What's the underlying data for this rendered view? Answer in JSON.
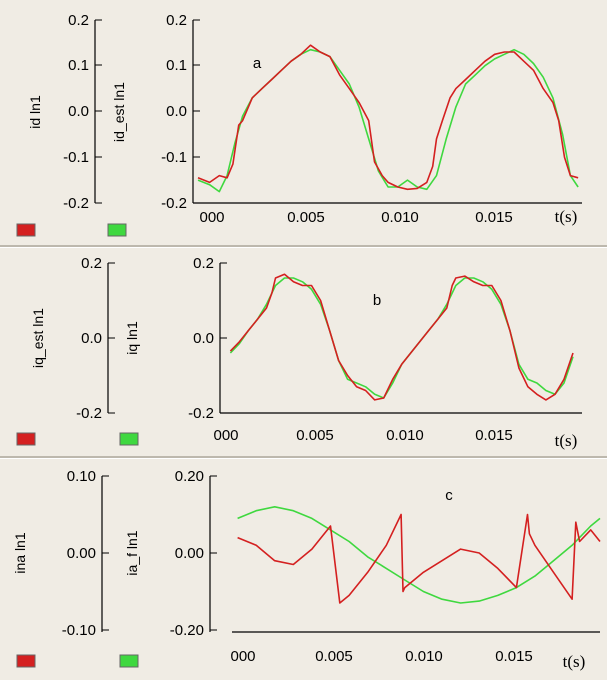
{
  "colors": {
    "background": "#ffffff",
    "panel_bg": "#f0ece4",
    "series_red": "#d42020",
    "series_green": "#3fd83f",
    "axis": "#000000"
  },
  "chart_data": [
    {
      "type": "line",
      "panel_label": "a",
      "outer_axis": {
        "label": "id ln1",
        "ticks": [
          "0.2",
          "0.1",
          "0.0",
          "-0.1",
          "-0.2"
        ]
      },
      "inner_axis": {
        "label": "id_est ln1",
        "ticks": [
          "0.2",
          "0.1",
          "0.0",
          "-0.1",
          "-0.2"
        ]
      },
      "xlabel": "t(s)",
      "xticks": [
        "000",
        "0.005",
        "0.010",
        "0.015"
      ],
      "xlim": [
        -0.0003,
        0.0195
      ],
      "ylim": [
        -0.2,
        0.2
      ],
      "legend_swatches": [
        "red",
        "green"
      ],
      "series": [
        {
          "color": "red",
          "x": [
            -0.0003,
            0.0003,
            0.0008,
            0.0012,
            0.0015,
            0.0018,
            0.002,
            0.0025,
            0.003,
            0.0035,
            0.004,
            0.0045,
            0.005,
            0.0055,
            0.006,
            0.0065,
            0.007,
            0.0075,
            0.008,
            0.0085,
            0.0088,
            0.0092,
            0.0095,
            0.01,
            0.0105,
            0.011,
            0.0115,
            0.0118,
            0.012,
            0.0123,
            0.0127,
            0.013,
            0.0135,
            0.014,
            0.0145,
            0.015,
            0.0155,
            0.016,
            0.0165,
            0.017,
            0.0175,
            0.018,
            0.0183,
            0.0186,
            0.0189,
            0.0193
          ],
          "y": [
            -0.145,
            -0.155,
            -0.14,
            -0.145,
            -0.115,
            -0.03,
            -0.02,
            0.03,
            0.05,
            0.07,
            0.09,
            0.11,
            0.125,
            0.145,
            0.13,
            0.12,
            0.08,
            0.05,
            0.02,
            -0.02,
            -0.11,
            -0.14,
            -0.155,
            -0.165,
            -0.17,
            -0.168,
            -0.155,
            -0.12,
            -0.06,
            -0.02,
            0.03,
            0.05,
            0.07,
            0.09,
            0.11,
            0.125,
            0.13,
            0.13,
            0.11,
            0.09,
            0.05,
            0.02,
            -0.02,
            -0.1,
            -0.14,
            -0.145
          ]
        },
        {
          "color": "green",
          "x": [
            -0.0003,
            0.0003,
            0.0008,
            0.0012,
            0.0016,
            0.002,
            0.0025,
            0.003,
            0.0035,
            0.004,
            0.0045,
            0.005,
            0.0055,
            0.006,
            0.0065,
            0.007,
            0.0075,
            0.008,
            0.0085,
            0.009,
            0.0095,
            0.01,
            0.0105,
            0.011,
            0.0115,
            0.012,
            0.0125,
            0.013,
            0.0135,
            0.014,
            0.0145,
            0.015,
            0.0155,
            0.016,
            0.0165,
            0.017,
            0.0175,
            0.018,
            0.0185,
            0.0189,
            0.0193
          ],
          "y": [
            -0.15,
            -0.16,
            -0.175,
            -0.14,
            -0.07,
            -0.01,
            0.03,
            0.05,
            0.07,
            0.09,
            0.11,
            0.125,
            0.135,
            0.13,
            0.12,
            0.09,
            0.06,
            0.01,
            -0.06,
            -0.13,
            -0.165,
            -0.165,
            -0.15,
            -0.165,
            -0.17,
            -0.14,
            -0.06,
            0.01,
            0.06,
            0.08,
            0.1,
            0.115,
            0.125,
            0.135,
            0.125,
            0.105,
            0.075,
            0.03,
            -0.05,
            -0.14,
            -0.165
          ]
        }
      ]
    },
    {
      "type": "line",
      "panel_label": "b",
      "outer_axis": {
        "label": "iq_est ln1",
        "ticks": [
          "0.2",
          "0.0",
          "-0.2"
        ]
      },
      "inner_axis": {
        "label": "iq ln1",
        "ticks": [
          "0.2",
          "0.0",
          "-0.2"
        ]
      },
      "xlabel": "t(s)",
      "xticks": [
        "000",
        "0.005",
        "0.010",
        "0.015"
      ],
      "xlim": [
        -0.0003,
        0.0195
      ],
      "ylim": [
        -0.2,
        0.2
      ],
      "legend_swatches": [
        "red",
        "green"
      ],
      "series": [
        {
          "color": "red",
          "x": [
            0.0,
            0.0005,
            0.001,
            0.0015,
            0.002,
            0.0023,
            0.0025,
            0.003,
            0.0035,
            0.004,
            0.0045,
            0.005,
            0.0055,
            0.006,
            0.0065,
            0.007,
            0.0075,
            0.008,
            0.0085,
            0.009,
            0.0095,
            0.01,
            0.0105,
            0.011,
            0.0115,
            0.012,
            0.0123,
            0.0125,
            0.013,
            0.0135,
            0.014,
            0.0145,
            0.015,
            0.0155,
            0.016,
            0.0165,
            0.017,
            0.0175,
            0.018,
            0.0185,
            0.019
          ],
          "y": [
            -0.035,
            -0.01,
            0.02,
            0.05,
            0.08,
            0.12,
            0.16,
            0.17,
            0.15,
            0.14,
            0.14,
            0.1,
            0.02,
            -0.06,
            -0.1,
            -0.13,
            -0.14,
            -0.165,
            -0.16,
            -0.11,
            -0.07,
            -0.04,
            -0.01,
            0.02,
            0.05,
            0.08,
            0.14,
            0.16,
            0.165,
            0.15,
            0.14,
            0.14,
            0.1,
            0.02,
            -0.08,
            -0.13,
            -0.15,
            -0.165,
            -0.15,
            -0.11,
            -0.04
          ]
        },
        {
          "color": "green",
          "x": [
            0.0,
            0.0005,
            0.001,
            0.0015,
            0.002,
            0.0025,
            0.003,
            0.0035,
            0.004,
            0.0045,
            0.005,
            0.0055,
            0.006,
            0.0065,
            0.007,
            0.0075,
            0.008,
            0.0085,
            0.009,
            0.0095,
            0.01,
            0.0105,
            0.011,
            0.0115,
            0.012,
            0.0125,
            0.013,
            0.0135,
            0.014,
            0.0145,
            0.015,
            0.0155,
            0.016,
            0.0165,
            0.017,
            0.0175,
            0.018,
            0.0185,
            0.019
          ],
          "y": [
            -0.04,
            -0.015,
            0.02,
            0.05,
            0.09,
            0.14,
            0.16,
            0.16,
            0.15,
            0.13,
            0.09,
            0.02,
            -0.06,
            -0.11,
            -0.12,
            -0.13,
            -0.15,
            -0.16,
            -0.12,
            -0.07,
            -0.04,
            -0.01,
            0.02,
            0.05,
            0.09,
            0.14,
            0.16,
            0.16,
            0.15,
            0.13,
            0.09,
            0.02,
            -0.07,
            -0.11,
            -0.12,
            -0.14,
            -0.15,
            -0.12,
            -0.05
          ]
        }
      ]
    },
    {
      "type": "line",
      "panel_label": "c",
      "outer_axis": {
        "label": "ina ln1",
        "ticks": [
          "0.10",
          "0.00",
          "-0.10"
        ],
        "ylim": [
          -0.1,
          0.1
        ]
      },
      "inner_axis": {
        "label": "ia_f ln1",
        "ticks": [
          "0.20",
          "0.00",
          "-0.20"
        ],
        "ylim": [
          -0.2,
          0.2
        ]
      },
      "xlabel": "t(s)",
      "xticks": [
        "000",
        "0.005",
        "0.010",
        "0.015"
      ],
      "xlim": [
        -0.0003,
        0.0195
      ],
      "legend_swatches": [
        "red",
        "green"
      ],
      "series": [
        {
          "color": "red",
          "axis": "inner",
          "x": [
            0.0,
            0.001,
            0.002,
            0.003,
            0.004,
            0.005,
            0.0055,
            0.006,
            0.007,
            0.008,
            0.0088,
            0.0089,
            0.009,
            0.01,
            0.011,
            0.012,
            0.013,
            0.014,
            0.015,
            0.0156,
            0.0157,
            0.016,
            0.017,
            0.018,
            0.0182,
            0.0184,
            0.019,
            0.0195
          ],
          "y": [
            0.04,
            0.02,
            -0.02,
            -0.03,
            0.01,
            0.07,
            -0.13,
            -0.11,
            -0.05,
            0.02,
            0.1,
            -0.1,
            -0.09,
            -0.05,
            -0.02,
            0.01,
            0.0,
            -0.04,
            -0.09,
            0.1,
            0.05,
            0.02,
            -0.05,
            -0.12,
            0.08,
            0.03,
            0.06,
            0.03
          ]
        },
        {
          "color": "green",
          "axis": "inner",
          "x": [
            0.0,
            0.001,
            0.002,
            0.003,
            0.004,
            0.005,
            0.006,
            0.007,
            0.008,
            0.009,
            0.01,
            0.011,
            0.012,
            0.013,
            0.014,
            0.015,
            0.016,
            0.017,
            0.018,
            0.019,
            0.0195
          ],
          "y": [
            0.09,
            0.11,
            0.12,
            0.11,
            0.09,
            0.06,
            0.03,
            -0.01,
            -0.04,
            -0.07,
            -0.1,
            -0.12,
            -0.13,
            -0.125,
            -0.11,
            -0.09,
            -0.06,
            -0.02,
            0.02,
            0.07,
            0.09
          ]
        }
      ]
    }
  ]
}
